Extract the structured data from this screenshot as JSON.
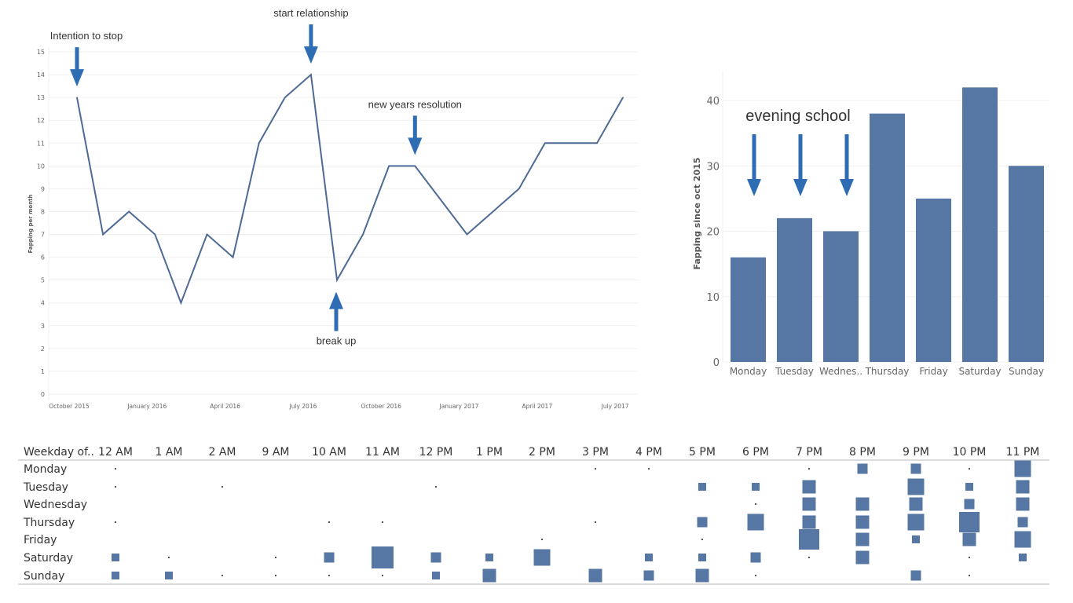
{
  "colors": {
    "line": "#4e6a94",
    "bar": "#5677a3",
    "arrow": "#2e6db4",
    "grid": "#f0f0f0",
    "axis_text": "#666666",
    "mark": "#5677a3"
  },
  "chart_data": [
    {
      "type": "line",
      "title": "",
      "xlabel": "",
      "ylabel": "Fapping per month",
      "ylim": [
        0,
        15
      ],
      "yticks": [
        "0",
        "1",
        "2",
        "3",
        "4",
        "5",
        "6",
        "7",
        "8",
        "9",
        "10",
        "11",
        "12",
        "13",
        "14",
        "15"
      ],
      "x_tick_labels": [
        {
          "label": "October 2015",
          "month_index": 0
        },
        {
          "label": "January 2016",
          "month_index": 3
        },
        {
          "label": "April 2016",
          "month_index": 6
        },
        {
          "label": "July 2016",
          "month_index": 9
        },
        {
          "label": "October 2016",
          "month_index": 12
        },
        {
          "label": "January 2017",
          "month_index": 15
        },
        {
          "label": "April 2017",
          "month_index": 18
        },
        {
          "label": "July 2017",
          "month_index": 21
        }
      ],
      "series": [
        {
          "name": "Fapping per month",
          "points": [
            {
              "month_index": 0,
              "month": "Oct 2015",
              "value": 13
            },
            {
              "month_index": 1,
              "month": "Nov 2015",
              "value": 7
            },
            {
              "month_index": 2,
              "month": "Dec 2015",
              "value": 8
            },
            {
              "month_index": 3,
              "month": "Jan 2016",
              "value": 7
            },
            {
              "month_index": 4,
              "month": "Feb 2016",
              "value": 4
            },
            {
              "month_index": 5,
              "month": "Mar 2016",
              "value": 7
            },
            {
              "month_index": 6,
              "month": "Apr 2016",
              "value": 6
            },
            {
              "month_index": 7,
              "month": "May 2016",
              "value": 11
            },
            {
              "month_index": 8,
              "month": "Jun 2016",
              "value": 13
            },
            {
              "month_index": 9,
              "month": "Jul 2016",
              "value": 14
            },
            {
              "month_index": 10,
              "month": "Aug 2016",
              "value": 5
            },
            {
              "month_index": 11,
              "month": "Sep 2016",
              "value": 7
            },
            {
              "month_index": 12,
              "month": "Oct 2016",
              "value": 10
            },
            {
              "month_index": 13,
              "month": "Nov 2016",
              "value": 10
            },
            {
              "month_index": 15,
              "month": "Jan 2017",
              "value": 7
            },
            {
              "month_index": 16,
              "month": "Feb 2017",
              "value": 8
            },
            {
              "month_index": 17,
              "month": "Mar 2017",
              "value": 9
            },
            {
              "month_index": 18,
              "month": "Apr 2017",
              "value": 11
            },
            {
              "month_index": 19,
              "month": "May 2017",
              "value": 11
            },
            {
              "month_index": 20,
              "month": "Jun 2017",
              "value": 11
            },
            {
              "month_index": 21,
              "month": "Jul 2017",
              "value": 13
            }
          ]
        }
      ],
      "annotations": [
        {
          "text": "Intention to stop",
          "month_index": 0,
          "direction": "down"
        },
        {
          "text": "start relationship",
          "month_index": 9,
          "direction": "down"
        },
        {
          "text": "break up",
          "month_index": 10,
          "direction": "up"
        },
        {
          "text": "new years resolution",
          "month_index": 13,
          "direction": "down"
        }
      ]
    },
    {
      "type": "bar",
      "title": "",
      "xlabel": "",
      "ylabel": "Fapping since oct 2015",
      "ylim": [
        0,
        44
      ],
      "yticks": [
        "0",
        "10",
        "20",
        "30",
        "40"
      ],
      "categories": [
        "Monday",
        "Tuesday",
        "Wednes..",
        "Thursday",
        "Friday",
        "Saturday",
        "Sunday"
      ],
      "values": [
        16,
        22,
        20,
        38,
        25,
        42,
        30
      ],
      "annotations": [
        {
          "text": "evening school",
          "arrows_over": [
            "Monday",
            "Tuesday",
            "Wednes.."
          ]
        }
      ]
    },
    {
      "type": "heatmap",
      "title": "",
      "row_header": "Weekday of..",
      "rows": [
        "Monday",
        "Tuesday",
        "Wednesday",
        "Thursday",
        "Friday",
        "Saturday",
        "Sunday"
      ],
      "columns": [
        "12 AM",
        "1 AM",
        "2 AM",
        "9 AM",
        "10 AM",
        "11 AM",
        "12 PM",
        "1 PM",
        "2 PM",
        "3 PM",
        "4 PM",
        "5 PM",
        "6 PM",
        "7 PM",
        "8 PM",
        "9 PM",
        "10 PM",
        "11 PM"
      ],
      "size_legend": "relative count (1 = smallest dot)",
      "values": [
        [
          1,
          0,
          0,
          0,
          0,
          0,
          0,
          0,
          0,
          1,
          1,
          0,
          0,
          1,
          3,
          3,
          1,
          5
        ],
        [
          1,
          0,
          1,
          0,
          0,
          0,
          1,
          0,
          0,
          0,
          0,
          2,
          2,
          4,
          0,
          5,
          2,
          4
        ],
        [
          0,
          0,
          0,
          0,
          0,
          0,
          0,
          0,
          0,
          0,
          0,
          0,
          1,
          4,
          4,
          4,
          3,
          4
        ],
        [
          1,
          0,
          0,
          0,
          1,
          1,
          0,
          0,
          0,
          1,
          0,
          3,
          5,
          4,
          4,
          5,
          6,
          3
        ],
        [
          0,
          0,
          0,
          0,
          0,
          0,
          0,
          0,
          1,
          0,
          0,
          1,
          0,
          6,
          4,
          2,
          4,
          5
        ],
        [
          2,
          1,
          0,
          1,
          3,
          7,
          3,
          2,
          5,
          0,
          2,
          2,
          3,
          1,
          4,
          0,
          1,
          2
        ],
        [
          2,
          2,
          1,
          1,
          1,
          1,
          2,
          4,
          0,
          4,
          3,
          4,
          1,
          0,
          0,
          3,
          1,
          0
        ]
      ]
    }
  ]
}
